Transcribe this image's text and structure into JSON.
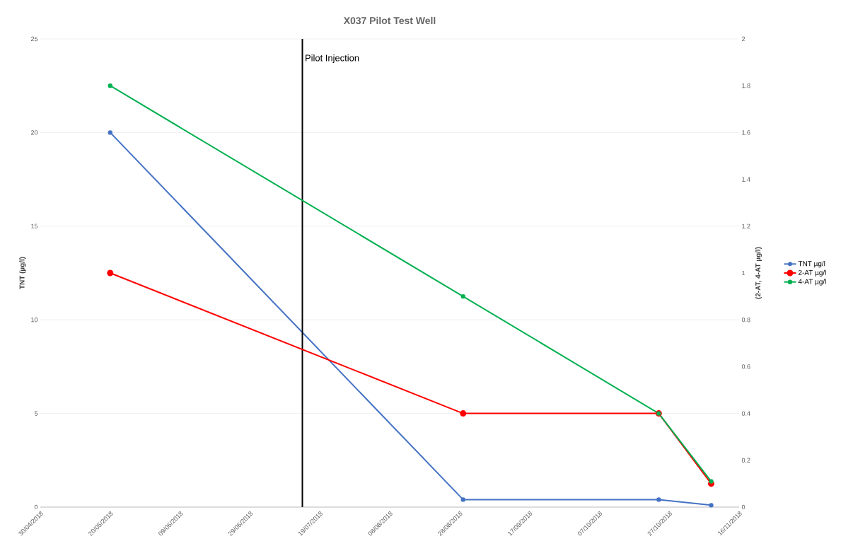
{
  "chart_data": {
    "type": "line",
    "title": "X037 Pilot Test Well",
    "ylabel": "TNT (µg/l)",
    "y2label": "(2-AT, 4-AT µg/l)",
    "x": [
      "2018-05-20",
      "2018-08-29",
      "2018-10-24",
      "2018-11-08"
    ],
    "series": [
      {
        "name": "TNT µg/l",
        "color": "#4472c4",
        "values": [
          20,
          0.4,
          0.4,
          0.1
        ]
      },
      {
        "name": "2-AT µg/l",
        "color": "#ff0000",
        "values": [
          1.0,
          0.4,
          0.4,
          0.1
        ],
        "axis": "y2"
      },
      {
        "name": "4-AT µg/l",
        "color": "#00b050",
        "values": [
          1.8,
          0.9,
          0.4,
          0.11
        ],
        "axis": "y2"
      }
    ],
    "xlim": [
      "2018-04-30",
      "2018-11-16"
    ],
    "xticks": [
      {
        "value": "2018-04-30",
        "label": "30/04/2018"
      },
      {
        "value": "2018-05-20",
        "label": "20/05/2018"
      },
      {
        "value": "2018-06-09",
        "label": "09/06/2018"
      },
      {
        "value": "2018-06-29",
        "label": "29/06/2018"
      },
      {
        "value": "2018-07-19",
        "label": "19/07/2018"
      },
      {
        "value": "2018-08-08",
        "label": "08/08/2018"
      },
      {
        "value": "2018-08-28",
        "label": "28/08/2018"
      },
      {
        "value": "2018-09-17",
        "label": "17/09/2018"
      },
      {
        "value": "2018-10-07",
        "label": "07/10/2018"
      },
      {
        "value": "2018-10-27",
        "label": "27/10/2018"
      },
      {
        "value": "2018-11-16",
        "label": "16/11/2018"
      }
    ],
    "ylim": [
      0,
      25
    ],
    "yticks": [
      0,
      5,
      10,
      15,
      20,
      25
    ],
    "y2lim": [
      0,
      2
    ],
    "y2ticks": [
      0,
      0.2,
      0.4,
      0.6,
      0.8,
      1,
      1.2,
      1.4,
      1.6,
      1.8,
      2
    ],
    "ref_lines": [
      {
        "axis": "x",
        "value": "2018-07-14",
        "label": "Pilot Injection",
        "color": "#000000"
      }
    ],
    "grid": "y",
    "legend": "right",
    "marker": "circle",
    "line_style": "solid"
  }
}
